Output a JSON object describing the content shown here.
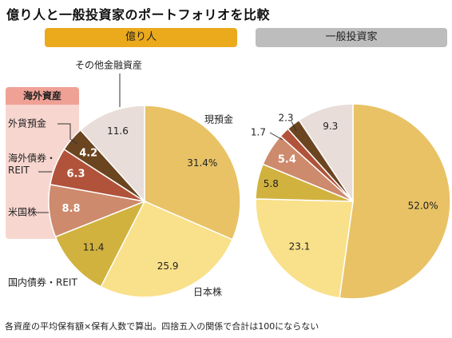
{
  "title": "億り人と一般投資家のポートフォリオを比較",
  "footnote": "各資産の平均保有額×保有人数で算出。四捨五入の関係で合計は100にならない",
  "overseas_label": "海外資産",
  "chart_data": [
    {
      "type": "pie",
      "title": "億り人",
      "unit": "%",
      "slices": [
        {
          "label": "現預金",
          "value": 31.4,
          "value_label": "31.4%",
          "color": "#e8c265"
        },
        {
          "label": "日本株",
          "value": 25.9,
          "value_label": "25.9",
          "color": "#f9e08a"
        },
        {
          "label": "国内債券・REIT",
          "value": 11.4,
          "value_label": "11.4",
          "color": "#d1b23e"
        },
        {
          "label": "米国株",
          "value": 8.8,
          "value_label": "8.8",
          "color": "#cd8a6c"
        },
        {
          "label": "海外債券・REIT",
          "value": 6.3,
          "value_label": "6.3",
          "color": "#b0533a"
        },
        {
          "label": "外貨預金",
          "value": 4.2,
          "value_label": "4.2",
          "color": "#6b4420"
        },
        {
          "label": "その他金融資産",
          "value": 11.6,
          "value_label": "11.6",
          "color": "#e8ddd8"
        }
      ]
    },
    {
      "type": "pie",
      "title": "一般投資家",
      "unit": "%",
      "slices": [
        {
          "value": 52.0,
          "value_label": "52.0%",
          "color": "#e8c265"
        },
        {
          "value": 23.1,
          "value_label": "23.1",
          "color": "#f9e08a"
        },
        {
          "value": 5.8,
          "value_label": "5.8",
          "color": "#d1b23e"
        },
        {
          "value": 5.4,
          "value_label": "5.4",
          "color": "#cd8a6c"
        },
        {
          "value": 1.7,
          "value_label": "1.7",
          "color": "#b0533a"
        },
        {
          "value": 2.3,
          "value_label": "2.3",
          "color": "#6b4420"
        },
        {
          "value": 9.3,
          "value_label": "9.3",
          "color": "#e8ddd8"
        }
      ]
    }
  ]
}
